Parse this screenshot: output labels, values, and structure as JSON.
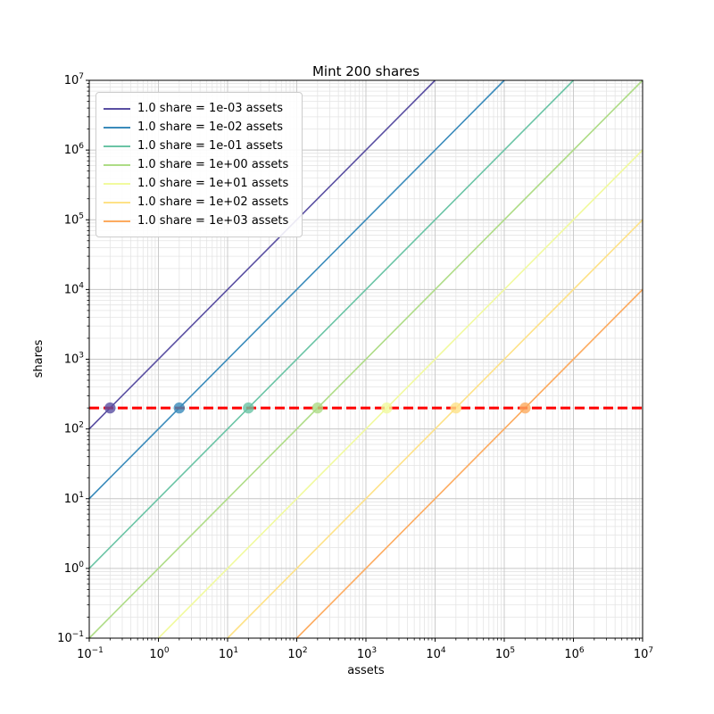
{
  "figure": {
    "background": "#ffffff"
  },
  "chart_data": {
    "type": "line",
    "title": "Mint 200 shares",
    "xlabel": "assets",
    "ylabel": "shares",
    "xscale": "log",
    "yscale": "log",
    "xlim": [
      0.1,
      10000000
    ],
    "ylim": [
      0.1,
      10000000
    ],
    "x_tick_exponents": [
      -1,
      0,
      1,
      2,
      3,
      4,
      5,
      6,
      7
    ],
    "y_tick_exponents": [
      -1,
      0,
      1,
      2,
      3,
      4,
      5,
      6,
      7
    ],
    "grid": {
      "on": true,
      "major_color": "#c6c6c6",
      "minor_color": "#e4e4e4"
    },
    "legend_position": "upper left",
    "series": [
      {
        "name": "1.0 share = 1e-03 assets",
        "color": "#5a4fa2",
        "assets_per_share": 0.001,
        "mint_point": {
          "assets": 0.2,
          "shares": 200
        }
      },
      {
        "name": "1.0 share = 1e-02 assets",
        "color": "#3a8bbb",
        "assets_per_share": 0.01,
        "mint_point": {
          "assets": 2,
          "shares": 200
        }
      },
      {
        "name": "1.0 share = 1e-01 assets",
        "color": "#6ac4a5",
        "assets_per_share": 0.1,
        "mint_point": {
          "assets": 20,
          "shares": 200
        }
      },
      {
        "name": "1.0 share = 1e+00 assets",
        "color": "#aedc86",
        "assets_per_share": 1,
        "mint_point": {
          "assets": 200,
          "shares": 200
        }
      },
      {
        "name": "1.0 share = 1e+01 assets",
        "color": "#f1fa9e",
        "assets_per_share": 10,
        "mint_point": {
          "assets": 2000,
          "shares": 200
        }
      },
      {
        "name": "1.0 share = 1e+02 assets",
        "color": "#fee287",
        "assets_per_share": 100,
        "mint_point": {
          "assets": 20000,
          "shares": 200
        }
      },
      {
        "name": "1.0 share = 1e+03 assets",
        "color": "#fdab5f",
        "assets_per_share": 1000,
        "mint_point": {
          "assets": 200000,
          "shares": 200
        }
      }
    ],
    "target_line": {
      "shares": 200,
      "color": "#ff0000",
      "style": "dashed",
      "width": 3
    }
  }
}
